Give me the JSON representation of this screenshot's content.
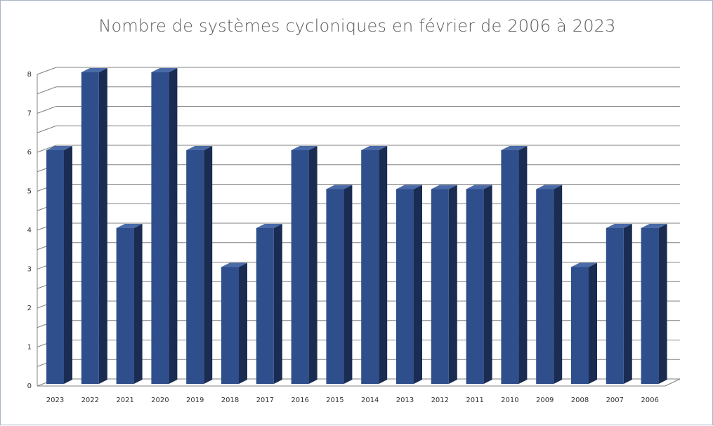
{
  "chart_data": {
    "type": "bar",
    "title": "Nombre de systèmes cycloniques en février de 2006 à 2023",
    "categories": [
      "2023",
      "2022",
      "2021",
      "2020",
      "2019",
      "2018",
      "2017",
      "2016",
      "2015",
      "2014",
      "2013",
      "2012",
      "2011",
      "2010",
      "2009",
      "2008",
      "2007",
      "2006"
    ],
    "values": [
      6,
      8,
      4,
      8,
      6,
      3,
      4,
      6,
      5,
      6,
      5,
      5,
      5,
      6,
      5,
      3,
      4,
      4
    ],
    "ylim": [
      0,
      8
    ],
    "yticks": [
      "0",
      "1",
      "2",
      "3",
      "4",
      "5",
      "6",
      "7",
      "8"
    ],
    "grid": true,
    "legend": "none",
    "colors": {
      "bar_front": "#2f4f8c",
      "bar_side": "#1a2c52",
      "bar_top": "#4a6aa8",
      "grid": "#808080"
    }
  }
}
